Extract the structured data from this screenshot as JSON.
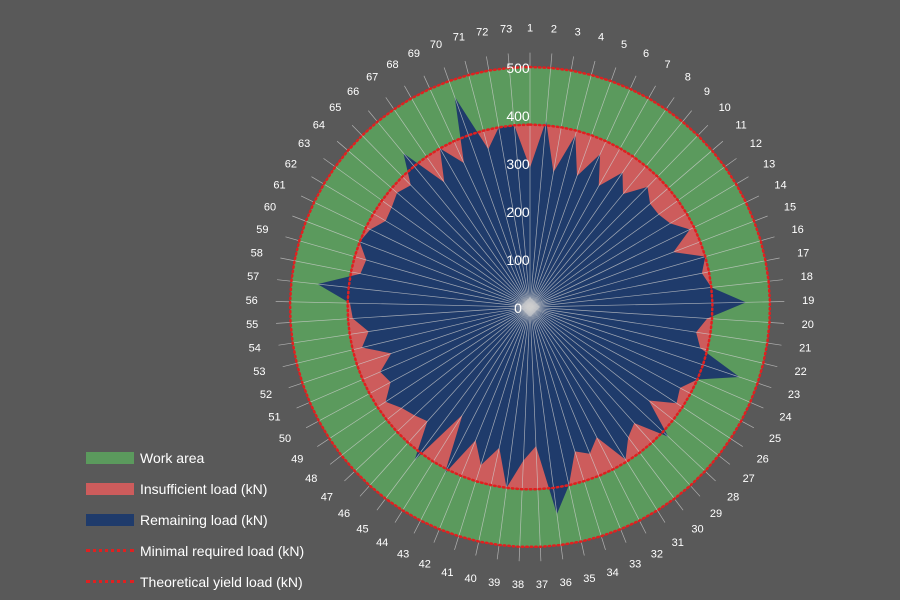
{
  "chart_data": {
    "type": "radar",
    "categories": [
      "1",
      "2",
      "3",
      "4",
      "5",
      "6",
      "7",
      "8",
      "9",
      "10",
      "11",
      "12",
      "13",
      "14",
      "15",
      "16",
      "17",
      "18",
      "19",
      "20",
      "21",
      "22",
      "23",
      "24",
      "25",
      "26",
      "27",
      "28",
      "29",
      "30",
      "31",
      "32",
      "33",
      "34",
      "35",
      "36",
      "37",
      "38",
      "39",
      "40",
      "41",
      "42",
      "43",
      "44",
      "45",
      "46",
      "47",
      "48",
      "49",
      "50",
      "51",
      "52",
      "53",
      "54",
      "55",
      "56",
      "57",
      "58",
      "59",
      "60",
      "61",
      "62",
      "63",
      "64",
      "65",
      "66",
      "67",
      "68",
      "69",
      "70",
      "71",
      "72",
      "73"
    ],
    "radial_ticks": [
      0,
      100,
      200,
      300,
      400,
      500
    ],
    "rlim": [
      0,
      500
    ],
    "legend_position": "bottom-left",
    "series": [
      {
        "name": "Work area",
        "type": "area",
        "color": "#5b9a5d",
        "values": [
          500,
          500,
          500,
          500,
          500,
          500,
          500,
          500,
          500,
          500,
          500,
          500,
          500,
          500,
          500,
          500,
          500,
          500,
          500,
          500,
          500,
          500,
          500,
          500,
          500,
          500,
          500,
          500,
          500,
          500,
          500,
          500,
          500,
          500,
          500,
          500,
          500,
          500,
          500,
          500,
          500,
          500,
          500,
          500,
          500,
          500,
          500,
          500,
          500,
          500,
          500,
          500,
          500,
          500,
          500,
          500,
          500,
          500,
          500,
          500,
          500,
          500,
          500,
          500,
          500,
          500,
          500,
          500,
          500,
          500,
          500,
          500,
          500
        ]
      },
      {
        "name": "Insufficient load (kN)",
        "type": "area",
        "color": "#cd5c5c",
        "values": [
          380,
          380,
          380,
          380,
          380,
          380,
          380,
          380,
          380,
          380,
          380,
          380,
          380,
          380,
          380,
          380,
          380,
          380,
          380,
          380,
          380,
          380,
          380,
          380,
          380,
          380,
          380,
          380,
          380,
          380,
          380,
          380,
          380,
          380,
          380,
          380,
          380,
          380,
          380,
          380,
          380,
          380,
          380,
          380,
          380,
          380,
          380,
          380,
          380,
          380,
          380,
          380,
          380,
          380,
          380,
          380,
          380,
          380,
          380,
          380,
          380,
          380,
          380,
          380,
          380,
          380,
          380,
          380,
          380,
          380,
          380,
          380,
          380
        ]
      },
      {
        "name": "Remaining load (kN)",
        "type": "area",
        "color": "#1f3b6b",
        "values": [
          290,
          390,
          285,
          370,
          290,
          350,
          290,
          340,
          305,
          350,
          330,
          330,
          340,
          370,
          320,
          380,
          365,
          380,
          450,
          370,
          350,
          365,
          460,
          380,
          355,
          365,
          315,
          395,
          325,
          340,
          375,
          305,
          330,
          315,
          380,
          435,
          290,
          320,
          380,
          300,
          345,
          300,
          390,
          265,
          400,
          320,
          330,
          340,
          360,
          330,
          340,
          305,
          360,
          340,
          370,
          375,
          445,
          360,
          355,
          380,
          370,
          350,
          355,
          365,
          355,
          415,
          315,
          380,
          330,
          465,
          340,
          380,
          380
        ]
      },
      {
        "name": "Minimal required load (kN)",
        "type": "dotted-line",
        "color": "#e02020",
        "values": [
          380,
          380,
          380,
          380,
          380,
          380,
          380,
          380,
          380,
          380,
          380,
          380,
          380,
          380,
          380,
          380,
          380,
          380,
          380,
          380,
          380,
          380,
          380,
          380,
          380,
          380,
          380,
          380,
          380,
          380,
          380,
          380,
          380,
          380,
          380,
          380,
          380,
          380,
          380,
          380,
          380,
          380,
          380,
          380,
          380,
          380,
          380,
          380,
          380,
          380,
          380,
          380,
          380,
          380,
          380,
          380,
          380,
          380,
          380,
          380,
          380,
          380,
          380,
          380,
          380,
          380,
          380,
          380,
          380,
          380,
          380,
          380,
          380
        ]
      },
      {
        "name": "Theoretical yield load (kN)",
        "type": "dotted-line",
        "color": "#e02020",
        "values": [
          500,
          500,
          500,
          500,
          500,
          500,
          500,
          500,
          500,
          500,
          500,
          500,
          500,
          500,
          500,
          500,
          500,
          500,
          500,
          500,
          500,
          500,
          500,
          500,
          500,
          500,
          500,
          500,
          500,
          500,
          500,
          500,
          500,
          500,
          500,
          500,
          500,
          500,
          500,
          500,
          500,
          500,
          500,
          500,
          500,
          500,
          500,
          500,
          500,
          500,
          500,
          500,
          500,
          500,
          500,
          500,
          500,
          500,
          500,
          500,
          500,
          500,
          500,
          500,
          500,
          500,
          500,
          500,
          500,
          500,
          500,
          500,
          500
        ]
      }
    ]
  }
}
